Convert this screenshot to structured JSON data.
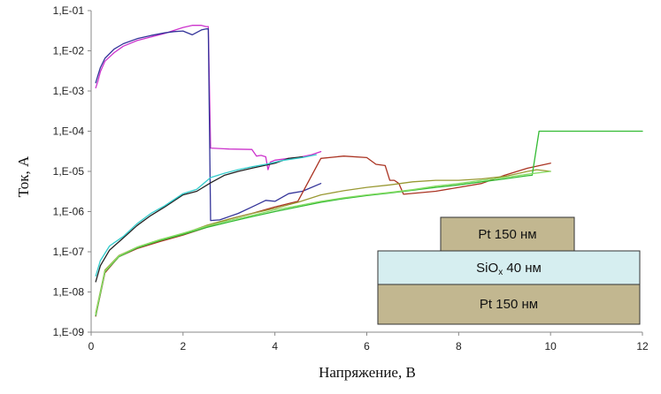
{
  "chart_data": {
    "type": "line",
    "xlabel": "Напряжение, В",
    "ylabel": "Ток, А",
    "xlim": [
      0,
      12
    ],
    "ylim": [
      1e-09,
      0.1
    ],
    "yscale": "log",
    "grid": false,
    "x_ticks": [
      "0",
      "2",
      "4",
      "6",
      "8",
      "10",
      "12"
    ],
    "y_ticks": [
      "1,E-09",
      "1,E-08",
      "1,E-07",
      "1,E-06",
      "1,E-05",
      "1,E-04",
      "1,E-03",
      "1,E-02",
      "1,E-01"
    ],
    "series": [
      {
        "color": "#cc33cc",
        "x": [
          0.1,
          0.15,
          0.2,
          0.3,
          0.5,
          0.7,
          1.0,
          1.3,
          1.6,
          1.8,
          2.0,
          2.2,
          2.4,
          2.5,
          2.55,
          2.6,
          3.0,
          3.5,
          3.6,
          3.7,
          3.8,
          3.85,
          3.9,
          4.0,
          4.3,
          4.5,
          4.8,
          5.0
        ],
        "y": [
          0.0012,
          0.0018,
          0.003,
          0.0055,
          0.009,
          0.013,
          0.018,
          0.022,
          0.027,
          0.032,
          0.038,
          0.043,
          0.043,
          0.04,
          0.04,
          3.8e-05,
          3.6e-05,
          3.5e-05,
          2.4e-05,
          2.5e-05,
          2.3e-05,
          1.1e-05,
          1.7e-05,
          1.9e-05,
          2.1e-05,
          2.2e-05,
          2.6e-05,
          3.1e-05
        ]
      },
      {
        "color": "#333399",
        "x": [
          0.1,
          0.15,
          0.2,
          0.3,
          0.5,
          0.7,
          1.0,
          1.3,
          1.6,
          1.8,
          2.0,
          2.2,
          2.4,
          2.5,
          2.55,
          2.6,
          2.8,
          3.0,
          3.2,
          3.5,
          3.8,
          4.0,
          4.3,
          4.6,
          5.0
        ],
        "y": [
          0.0016,
          0.0025,
          0.0038,
          0.0065,
          0.011,
          0.015,
          0.02,
          0.024,
          0.028,
          0.03,
          0.031,
          0.025,
          0.033,
          0.035,
          0.035,
          6e-07,
          6.2e-07,
          7.5e-07,
          9e-07,
          1.3e-06,
          1.9e-06,
          1.8e-06,
          2.8e-06,
          3.2e-06,
          5e-06
        ]
      },
      {
        "color": "#222222",
        "x": [
          0.1,
          0.2,
          0.4,
          0.7,
          1.0,
          1.3,
          1.6,
          2.0,
          2.3,
          2.6,
          2.9,
          3.2,
          3.5,
          4.0,
          4.3,
          4.6
        ],
        "y": [
          1.8e-08,
          4.5e-08,
          1.1e-07,
          2.2e-07,
          4.5e-07,
          8e-07,
          1.3e-06,
          2.6e-06,
          3.2e-06,
          5.2e-06,
          8e-06,
          1e-05,
          1.2e-05,
          1.6e-05,
          2.1e-05,
          2.3e-05
        ]
      },
      {
        "color": "#33cccc",
        "x": [
          0.1,
          0.2,
          0.4,
          0.7,
          1.0,
          1.3,
          1.6,
          2.0,
          2.3,
          2.6,
          2.9,
          3.2,
          3.5,
          3.8,
          4.2,
          4.6,
          4.9
        ],
        "y": [
          2.5e-08,
          6e-08,
          1.4e-07,
          2.4e-07,
          5e-07,
          9e-07,
          1.4e-06,
          2.8e-06,
          3.6e-06,
          7e-06,
          9e-06,
          1.1e-05,
          1.3e-05,
          1.5e-05,
          1.9e-05,
          2.2e-05,
          2.6e-05
        ]
      },
      {
        "color": "#aa3322",
        "x": [
          0.1,
          0.3,
          0.6,
          1.0,
          1.5,
          2.0,
          2.5,
          3.0,
          3.5,
          4.0,
          4.5,
          5.0,
          5.5,
          6.0,
          6.2,
          6.4,
          6.5,
          6.6,
          6.7,
          6.8,
          7.5,
          8.0,
          8.5,
          9.0,
          9.5,
          10.0
        ],
        "y": [
          2.5e-09,
          3e-08,
          7.5e-08,
          1.2e-07,
          1.8e-07,
          2.6e-07,
          4e-07,
          6.5e-07,
          9e-07,
          1.3e-06,
          1.8e-06,
          2.1e-05,
          2.4e-05,
          2.2e-05,
          1.5e-05,
          1.4e-05,
          6e-06,
          6e-06,
          5e-06,
          2.7e-06,
          3.2e-06,
          4e-06,
          5e-06,
          8e-06,
          1.2e-05,
          1.6e-05
        ]
      },
      {
        "color": "#999933",
        "x": [
          0.1,
          0.3,
          0.6,
          1.0,
          1.5,
          2.0,
          2.5,
          3.0,
          3.5,
          4.0,
          4.5,
          5.0,
          5.5,
          6.0,
          6.5,
          7.0,
          7.5,
          8.0,
          8.5,
          9.0,
          9.5,
          9.7,
          10.0
        ],
        "y": [
          3e-09,
          3.5e-08,
          8e-08,
          1.3e-07,
          2e-07,
          2.8e-07,
          4.5e-07,
          6.5e-07,
          9e-07,
          1.2e-06,
          1.7e-06,
          2.6e-06,
          3.3e-06,
          4e-06,
          4.6e-06,
          5.5e-06,
          6e-06,
          6e-06,
          6.5e-06,
          7.5e-06,
          1e-05,
          1.1e-05,
          1e-05
        ]
      },
      {
        "color": "#33bb33",
        "x": [
          0.1,
          0.3,
          0.6,
          1.0,
          1.5,
          2.0,
          2.5,
          3.0,
          3.5,
          4.0,
          4.5,
          5.0,
          5.5,
          6.0,
          6.5,
          7.0,
          7.5,
          8.0,
          8.5,
          9.0,
          9.5,
          9.6,
          9.75,
          10.0,
          12.0
        ],
        "y": [
          2.6e-09,
          3.2e-08,
          7.5e-08,
          1.25e-07,
          1.9e-07,
          2.7e-07,
          4e-07,
          5.5e-07,
          7.5e-07,
          1e-06,
          1.3e-06,
          1.7e-06,
          2.1e-06,
          2.5e-06,
          2.9e-06,
          3.4e-06,
          4e-06,
          4.6e-06,
          5.5e-06,
          6.5e-06,
          7.8e-06,
          8e-06,
          0.0001,
          0.0001,
          0.0001
        ]
      },
      {
        "color": "#88dd66",
        "x": [
          0.1,
          0.3,
          0.6,
          1.0,
          1.5,
          2.0,
          2.5,
          3.0,
          3.5,
          4.0,
          4.5,
          5.0,
          5.5,
          6.0,
          6.5,
          7.0,
          7.5,
          8.0,
          8.5,
          9.0,
          9.5,
          10.0
        ],
        "y": [
          2.8e-09,
          3.3e-08,
          7.8e-08,
          1.3e-07,
          2e-07,
          2.9e-07,
          4.3e-07,
          6e-07,
          8e-07,
          1.1e-06,
          1.4e-06,
          1.8e-06,
          2.2e-06,
          2.6e-06,
          3e-06,
          3.5e-06,
          4.3e-06,
          5e-06,
          6e-06,
          7e-06,
          8.5e-06,
          1e-05
        ]
      }
    ]
  },
  "stack": {
    "top": {
      "label": "Pt 150 нм",
      "color": "#c2b790"
    },
    "middle": {
      "label": "SiO",
      "sub": "x",
      "suffix": " 40 нм",
      "color": "#d6eef0"
    },
    "bottom": {
      "label": "Pt 150 нм",
      "color": "#c2b790"
    }
  }
}
